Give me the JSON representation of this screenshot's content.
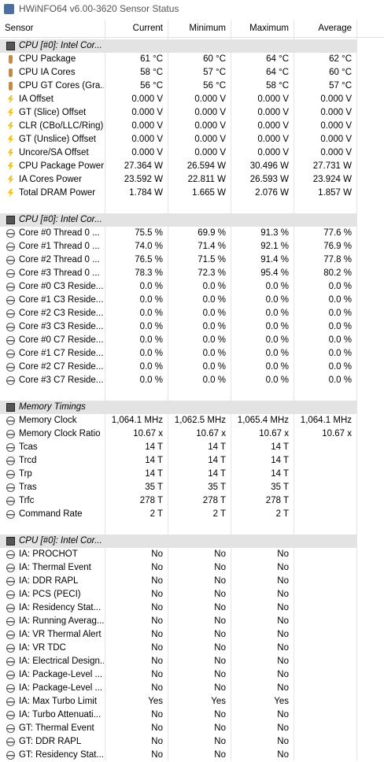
{
  "window": {
    "title": "HWiNFO64 v6.00-3620 Sensor Status"
  },
  "header": [
    "Sensor",
    "Current",
    "Minimum",
    "Maximum",
    "Average"
  ],
  "groups": [
    {
      "name": "CPU [#0]: Intel Cor...",
      "rows": [
        [
          "CPU Package",
          "61 °C",
          "60 °C",
          "64 °C",
          "62 °C"
        ],
        [
          "CPU IA Cores",
          "58 °C",
          "57 °C",
          "64 °C",
          "60 °C"
        ],
        [
          "CPU GT Cores (Gra...",
          "56 °C",
          "56 °C",
          "58 °C",
          "57 °C"
        ],
        [
          "IA Offset",
          "0.000 V",
          "0.000 V",
          "0.000 V",
          "0.000 V"
        ],
        [
          "GT (Slice) Offset",
          "0.000 V",
          "0.000 V",
          "0.000 V",
          "0.000 V"
        ],
        [
          "CLR (CBo/LLC/Ring)...",
          "0.000 V",
          "0.000 V",
          "0.000 V",
          "0.000 V"
        ],
        [
          "GT (Unslice) Offset",
          "0.000 V",
          "0.000 V",
          "0.000 V",
          "0.000 V"
        ],
        [
          "Uncore/SA Offset",
          "0.000 V",
          "0.000 V",
          "0.000 V",
          "0.000 V"
        ],
        [
          "CPU Package Power",
          "27.364 W",
          "26.594 W",
          "30.496 W",
          "27.731 W"
        ],
        [
          "IA Cores Power",
          "23.592 W",
          "22.811 W",
          "26.593 W",
          "23.924 W"
        ],
        [
          "Total DRAM Power",
          "1.784 W",
          "1.665 W",
          "2.076 W",
          "1.857 W"
        ]
      ]
    },
    {
      "name": "CPU [#0]: Intel Cor...",
      "rows": [
        [
          "Core #0 Thread 0 ...",
          "75.5 %",
          "69.9 %",
          "91.3 %",
          "77.6 %"
        ],
        [
          "Core #1 Thread 0 ...",
          "74.0 %",
          "71.4 %",
          "92.1 %",
          "76.9 %"
        ],
        [
          "Core #2 Thread 0 ...",
          "76.5 %",
          "71.5 %",
          "91.4 %",
          "77.8 %"
        ],
        [
          "Core #3 Thread 0 ...",
          "78.3 %",
          "72.3 %",
          "95.4 %",
          "80.2 %"
        ],
        [
          "Core #0 C3 Reside...",
          "0.0 %",
          "0.0 %",
          "0.0 %",
          "0.0 %"
        ],
        [
          "Core #1 C3 Reside...",
          "0.0 %",
          "0.0 %",
          "0.0 %",
          "0.0 %"
        ],
        [
          "Core #2 C3 Reside...",
          "0.0 %",
          "0.0 %",
          "0.0 %",
          "0.0 %"
        ],
        [
          "Core #3 C3 Reside...",
          "0.0 %",
          "0.0 %",
          "0.0 %",
          "0.0 %"
        ],
        [
          "Core #0 C7 Reside...",
          "0.0 %",
          "0.0 %",
          "0.0 %",
          "0.0 %"
        ],
        [
          "Core #1 C7 Reside...",
          "0.0 %",
          "0.0 %",
          "0.0 %",
          "0.0 %"
        ],
        [
          "Core #2 C7 Reside...",
          "0.0 %",
          "0.0 %",
          "0.0 %",
          "0.0 %"
        ],
        [
          "Core #3 C7 Reside...",
          "0.0 %",
          "0.0 %",
          "0.0 %",
          "0.0 %"
        ]
      ]
    },
    {
      "name": "Memory Timings",
      "rows": [
        [
          "Memory Clock",
          "1,064.1 MHz",
          "1,062.5 MHz",
          "1,065.4 MHz",
          "1,064.1 MHz"
        ],
        [
          "Memory Clock Ratio",
          "10.67 x",
          "10.67 x",
          "10.67 x",
          "10.67 x"
        ],
        [
          "Tcas",
          "14 T",
          "14 T",
          "14 T"
        ],
        [
          "Trcd",
          "14 T",
          "14 T",
          "14 T"
        ],
        [
          "Trp",
          "14 T",
          "14 T",
          "14 T"
        ],
        [
          "Tras",
          "35 T",
          "35 T",
          "35 T"
        ],
        [
          "Trfc",
          "278 T",
          "278 T",
          "278 T"
        ],
        [
          "Command Rate",
          "2 T",
          "2 T",
          "2 T"
        ]
      ]
    },
    {
      "name": "CPU [#0]: Intel Cor...",
      "rows": [
        [
          "IA: PROCHOT",
          "No",
          "No",
          "No"
        ],
        [
          "IA: Thermal Event",
          "No",
          "No",
          "No"
        ],
        [
          "IA: DDR RAPL",
          "No",
          "No",
          "No"
        ],
        [
          "IA: PCS (PECI)",
          "No",
          "No",
          "No"
        ],
        [
          "IA: Residency Stat...",
          "No",
          "No",
          "No"
        ],
        [
          "IA: Running Averag...",
          "No",
          "No",
          "No"
        ],
        [
          "IA: VR Thermal Alert",
          "No",
          "No",
          "No"
        ],
        [
          "IA: VR TDC",
          "No",
          "No",
          "No"
        ],
        [
          "IA: Electrical Design...",
          "No",
          "No",
          "No"
        ],
        [
          "IA: Package-Level ...",
          "No",
          "No",
          "No"
        ],
        [
          "IA: Package-Level ...",
          "No",
          "No",
          "No"
        ],
        [
          "IA: Max Turbo Limit",
          "Yes",
          "Yes",
          "Yes"
        ],
        [
          "IA: Turbo Attenuati...",
          "No",
          "No",
          "No"
        ],
        [
          "GT: Thermal Event",
          "No",
          "No",
          "No"
        ],
        [
          "GT: DDR RAPL",
          "No",
          "No",
          "No"
        ],
        [
          "GT: Residency Stat...",
          "No",
          "No",
          "No"
        ]
      ]
    }
  ]
}
